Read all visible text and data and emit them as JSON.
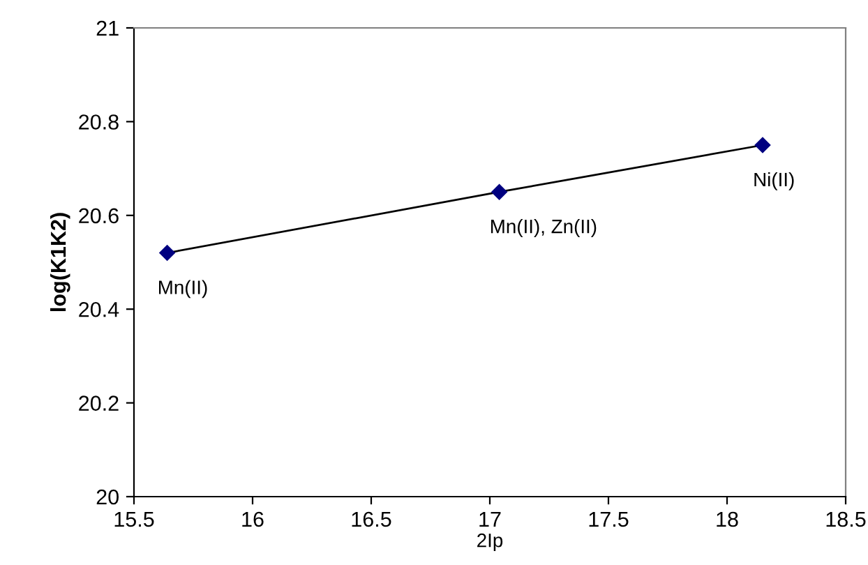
{
  "chart_data": {
    "type": "line",
    "xlabel": "2Ip",
    "ylabel": "log(K1K2)",
    "x": [
      15.64,
      17.04,
      18.15
    ],
    "series": [
      {
        "color": "#000080",
        "values": [
          20.52,
          20.65,
          20.75
        ]
      }
    ],
    "xlim": [
      15.5,
      18.5
    ],
    "xticks": [
      15.5,
      16,
      16.5,
      17,
      17.5,
      18,
      18.5
    ],
    "ylim": [
      20,
      21
    ],
    "yticks": [
      20,
      20.2,
      20.4,
      20.6,
      20.8,
      21
    ],
    "marker": "diamond",
    "line_style": "solid",
    "grid": false,
    "legend": false,
    "annotations": [
      {
        "text": "Mn(II)",
        "x": 15.64,
        "y": 20.52
      },
      {
        "text": "Mn(II), Zn(II)",
        "x": 17.04,
        "y": 20.65
      },
      {
        "text": "Ni(II)",
        "x": 18.15,
        "y": 20.75
      }
    ]
  }
}
